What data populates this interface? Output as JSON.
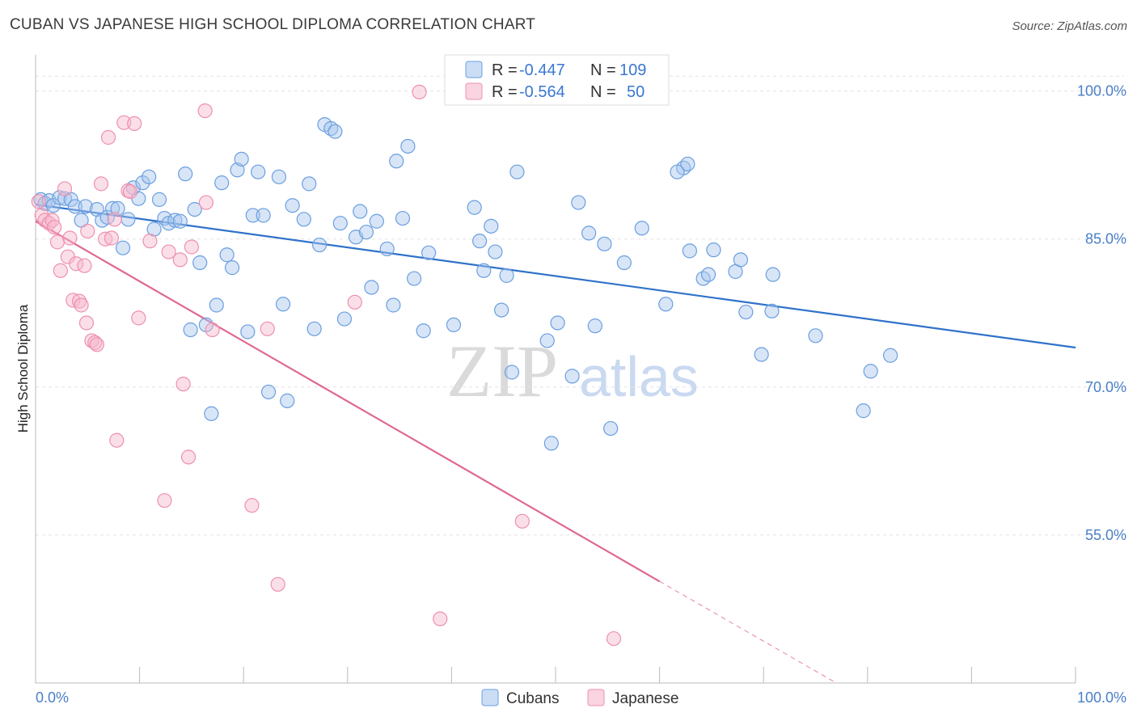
{
  "title": "CUBAN VS JAPANESE HIGH SCHOOL DIPLOMA CORRELATION CHART",
  "source": "Source: ZipAtlas.com",
  "watermark": {
    "zip": "ZIP",
    "atlas": "atlas"
  },
  "legend": {
    "r_label": "R =",
    "n_label": "N =",
    "rows": [
      {
        "r": "-0.447",
        "n": "109"
      },
      {
        "r": "-0.564",
        "n": "50"
      }
    ]
  },
  "colors": {
    "cubans_fill": "#a9c6ee",
    "cubans_stroke": "#6a9fe0",
    "cubans_line": "#2f72c9",
    "japanese_fill": "#f6b7cb",
    "japanese_stroke": "#ee90ae",
    "japanese_line": "#e06893",
    "axis_text": "#4a7fc6",
    "grid": "#e3e3e3"
  },
  "chart_data": {
    "type": "scatter",
    "title": "CUBAN VS JAPANESE HIGH SCHOOL DIPLOMA CORRELATION CHART",
    "xlabel": "",
    "ylabel": "High School Diploma",
    "xlim": [
      0,
      100
    ],
    "ylim": [
      40,
      103
    ],
    "x_tick_labels": [
      "0.0%",
      "100.0%"
    ],
    "y_ticks": [
      55,
      70,
      85,
      100
    ],
    "y_tick_labels": [
      "55.0%",
      "70.0%",
      "85.0%",
      "100.0%"
    ],
    "grid": true,
    "legend_position": "bottom-center",
    "series": [
      {
        "name": "Cubans",
        "r": -0.447,
        "n": 109,
        "trend": {
          "x": [
            0,
            100
          ],
          "y": [
            88.5,
            74.0
          ]
        },
        "points": [
          [
            0.5,
            89.0
          ],
          [
            0.9,
            88.6
          ],
          [
            1.3,
            88.9
          ],
          [
            1.7,
            88.4
          ],
          [
            2.3,
            89.2
          ],
          [
            2.8,
            89.1
          ],
          [
            3.4,
            89.0
          ],
          [
            3.8,
            88.3
          ],
          [
            4.4,
            86.9
          ],
          [
            4.8,
            88.3
          ],
          [
            5.9,
            88.0
          ],
          [
            6.4,
            86.9
          ],
          [
            6.9,
            87.2
          ],
          [
            7.4,
            88.1
          ],
          [
            7.9,
            88.1
          ],
          [
            8.4,
            84.1
          ],
          [
            8.9,
            87.0
          ],
          [
            9.4,
            90.2
          ],
          [
            9.9,
            89.1
          ],
          [
            10.3,
            90.7
          ],
          [
            10.9,
            91.3
          ],
          [
            11.4,
            86.0
          ],
          [
            11.9,
            89.0
          ],
          [
            12.4,
            87.1
          ],
          [
            12.8,
            86.6
          ],
          [
            13.4,
            86.9
          ],
          [
            13.9,
            86.8
          ],
          [
            14.4,
            91.6
          ],
          [
            14.9,
            75.8
          ],
          [
            15.3,
            88.0
          ],
          [
            15.8,
            82.6
          ],
          [
            16.4,
            76.3
          ],
          [
            16.9,
            67.3
          ],
          [
            17.4,
            78.3
          ],
          [
            17.9,
            90.7
          ],
          [
            18.4,
            83.4
          ],
          [
            18.9,
            82.1
          ],
          [
            19.4,
            92.0
          ],
          [
            19.8,
            93.1
          ],
          [
            20.4,
            75.6
          ],
          [
            20.9,
            87.4
          ],
          [
            21.4,
            91.8
          ],
          [
            21.9,
            87.4
          ],
          [
            22.4,
            69.5
          ],
          [
            23.4,
            91.3
          ],
          [
            23.8,
            78.4
          ],
          [
            24.2,
            68.6
          ],
          [
            24.7,
            88.4
          ],
          [
            25.8,
            87.0
          ],
          [
            26.3,
            90.6
          ],
          [
            26.8,
            75.9
          ],
          [
            27.3,
            84.4
          ],
          [
            27.8,
            96.6
          ],
          [
            28.4,
            96.2
          ],
          [
            28.8,
            95.9
          ],
          [
            29.3,
            86.6
          ],
          [
            29.7,
            76.9
          ],
          [
            30.8,
            85.2
          ],
          [
            31.2,
            87.8
          ],
          [
            31.8,
            85.7
          ],
          [
            32.3,
            80.1
          ],
          [
            32.8,
            86.8
          ],
          [
            33.8,
            84.0
          ],
          [
            34.4,
            78.3
          ],
          [
            34.7,
            92.9
          ],
          [
            35.3,
            87.1
          ],
          [
            35.8,
            94.4
          ],
          [
            36.4,
            81.0
          ],
          [
            37.3,
            75.7
          ],
          [
            37.8,
            83.6
          ],
          [
            40.2,
            76.3
          ],
          [
            42.2,
            88.2
          ],
          [
            42.7,
            84.8
          ],
          [
            43.1,
            81.8
          ],
          [
            43.8,
            86.3
          ],
          [
            44.2,
            83.7
          ],
          [
            44.8,
            77.8
          ],
          [
            45.3,
            81.3
          ],
          [
            45.8,
            71.5
          ],
          [
            46.3,
            91.8
          ],
          [
            49.2,
            74.7
          ],
          [
            49.6,
            64.3
          ],
          [
            50.2,
            76.5
          ],
          [
            51.6,
            71.1
          ],
          [
            52.2,
            88.7
          ],
          [
            53.2,
            85.6
          ],
          [
            53.8,
            76.2
          ],
          [
            54.7,
            84.5
          ],
          [
            55.3,
            65.8
          ],
          [
            56.6,
            82.6
          ],
          [
            58.3,
            86.1
          ],
          [
            60.6,
            78.4
          ],
          [
            62.3,
            92.2
          ],
          [
            62.7,
            92.6
          ],
          [
            62.9,
            83.8
          ],
          [
            64.2,
            81.0
          ],
          [
            64.7,
            81.4
          ],
          [
            65.2,
            83.9
          ],
          [
            67.3,
            81.7
          ],
          [
            67.8,
            82.9
          ],
          [
            68.3,
            77.6
          ],
          [
            69.8,
            73.3
          ],
          [
            70.8,
            77.7
          ],
          [
            70.9,
            81.4
          ],
          [
            75.0,
            75.2
          ],
          [
            79.6,
            67.6
          ],
          [
            80.3,
            71.6
          ],
          [
            82.2,
            73.2
          ],
          [
            61.7,
            91.8
          ]
        ]
      },
      {
        "name": "Japanese",
        "r": -0.564,
        "n": 50,
        "trend": {
          "x": [
            0,
            60
          ],
          "y": [
            86.8,
            50.3
          ]
        },
        "dashed_extension": {
          "x": [
            60,
            77
          ],
          "y": [
            50.3,
            40.0
          ]
        },
        "points": [
          [
            0.3,
            88.8
          ],
          [
            0.6,
            87.4
          ],
          [
            0.9,
            86.9
          ],
          [
            1.3,
            86.6
          ],
          [
            1.6,
            86.9
          ],
          [
            1.8,
            86.2
          ],
          [
            2.1,
            84.7
          ],
          [
            2.4,
            81.8
          ],
          [
            2.8,
            90.1
          ],
          [
            3.1,
            83.2
          ],
          [
            3.3,
            85.1
          ],
          [
            3.6,
            78.8
          ],
          [
            3.9,
            82.5
          ],
          [
            4.2,
            78.7
          ],
          [
            4.4,
            78.3
          ],
          [
            4.7,
            82.3
          ],
          [
            4.9,
            76.5
          ],
          [
            5.4,
            74.7
          ],
          [
            5.7,
            74.5
          ],
          [
            5.9,
            74.3
          ],
          [
            6.3,
            90.6
          ],
          [
            6.7,
            85.0
          ],
          [
            7.0,
            95.3
          ],
          [
            7.3,
            85.1
          ],
          [
            7.6,
            87.0
          ],
          [
            7.8,
            64.6
          ],
          [
            8.5,
            96.8
          ],
          [
            8.9,
            89.9
          ],
          [
            9.1,
            89.8
          ],
          [
            9.5,
            96.7
          ],
          [
            9.9,
            77.0
          ],
          [
            11.0,
            84.8
          ],
          [
            12.4,
            58.5
          ],
          [
            12.8,
            83.7
          ],
          [
            13.9,
            82.9
          ],
          [
            14.2,
            70.3
          ],
          [
            14.7,
            62.9
          ],
          [
            15.0,
            84.2
          ],
          [
            16.3,
            98.0
          ],
          [
            16.4,
            88.7
          ],
          [
            17.0,
            75.8
          ],
          [
            20.8,
            58.0
          ],
          [
            22.3,
            75.9
          ],
          [
            23.3,
            50.0
          ],
          [
            30.7,
            78.6
          ],
          [
            36.9,
            99.9
          ],
          [
            38.9,
            46.5
          ],
          [
            46.8,
            56.4
          ],
          [
            55.6,
            44.5
          ],
          [
            5.0,
            85.8
          ]
        ]
      }
    ]
  }
}
